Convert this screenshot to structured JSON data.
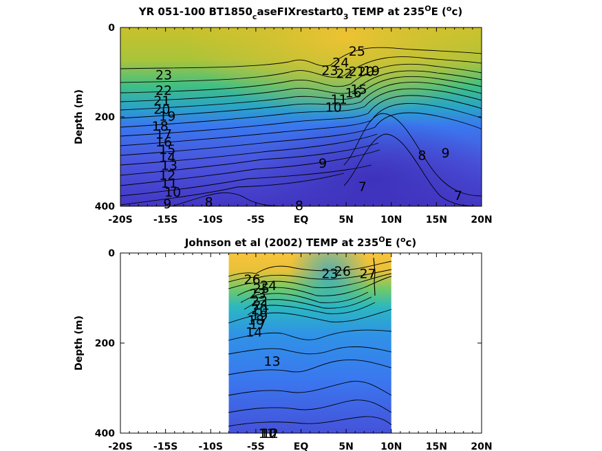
{
  "chart_data": [
    {
      "type": "contour",
      "title_main": "YR 051-100 BT1850",
      "title_sub1": "c",
      "title_mid": "aseFIXrestart0",
      "title_sub2": "3",
      "title_tail": " TEMP at 235",
      "title_deg": "O",
      "title_unit_open": "E (",
      "title_unit_deg": "o",
      "title_unit_close": "c)",
      "ylabel": "Depth (m)",
      "x_ticks": [
        "-20S",
        "-15S",
        "-10S",
        "-5S",
        "EQ",
        "5N",
        "10N",
        "15N",
        "20N"
      ],
      "x_values": [
        -20,
        -15,
        -10,
        -5,
        0,
        5,
        10,
        15,
        20
      ],
      "y_ticks": [
        "0",
        "200",
        "400"
      ],
      "y_values": [
        0,
        200,
        400
      ],
      "xlim": [
        -20,
        20
      ],
      "ylim": [
        0,
        400
      ],
      "data_extent": [
        -20,
        20
      ],
      "contour_labels": [
        {
          "text": "25",
          "x": 6.2,
          "y": 52
        },
        {
          "text": "24",
          "x": 4.4,
          "y": 78
        },
        {
          "text": "23",
          "x": 3.2,
          "y": 95
        },
        {
          "text": "22",
          "x": 4.8,
          "y": 102
        },
        {
          "text": "21",
          "x": 6.2,
          "y": 98
        },
        {
          "text": "20",
          "x": 7.2,
          "y": 98
        },
        {
          "text": "19",
          "x": 7.8,
          "y": 96
        },
        {
          "text": "23",
          "x": -15.2,
          "y": 105
        },
        {
          "text": "22",
          "x": -15.2,
          "y": 140
        },
        {
          "text": "21",
          "x": -15.4,
          "y": 163
        },
        {
          "text": "20",
          "x": -15.4,
          "y": 182
        },
        {
          "text": "19",
          "x": -14.8,
          "y": 198
        },
        {
          "text": "18",
          "x": -15.6,
          "y": 220
        },
        {
          "text": "17",
          "x": -15.2,
          "y": 238
        },
        {
          "text": "16",
          "x": -15.2,
          "y": 255
        },
        {
          "text": "15",
          "x": -14.8,
          "y": 272
        },
        {
          "text": "14",
          "x": -14.8,
          "y": 290
        },
        {
          "text": "13",
          "x": -14.6,
          "y": 308
        },
        {
          "text": "12",
          "x": -14.8,
          "y": 330
        },
        {
          "text": "11",
          "x": -14.6,
          "y": 348
        },
        {
          "text": "10",
          "x": -14.2,
          "y": 368
        },
        {
          "text": "9",
          "x": -14.8,
          "y": 394
        },
        {
          "text": "8",
          "x": -10.2,
          "y": 390
        },
        {
          "text": "8",
          "x": -0.2,
          "y": 398
        },
        {
          "text": "9",
          "x": 2.4,
          "y": 303
        },
        {
          "text": "10",
          "x": 3.6,
          "y": 178
        },
        {
          "text": "11",
          "x": 4.2,
          "y": 160
        },
        {
          "text": "16",
          "x": 5.8,
          "y": 145
        },
        {
          "text": "15",
          "x": 6.4,
          "y": 138
        },
        {
          "text": "7",
          "x": 6.8,
          "y": 355
        },
        {
          "text": "8",
          "x": 13.4,
          "y": 285
        },
        {
          "text": "9",
          "x": 16.0,
          "y": 280
        },
        {
          "text": "7",
          "x": 17.4,
          "y": 375
        }
      ]
    },
    {
      "type": "contour",
      "title_main": "Johnson et al (2002) TEMP at 235",
      "title_deg": "O",
      "title_unit_open": "E (",
      "title_unit_deg": "o",
      "title_unit_close": "c)",
      "ylabel": "Depth (m)",
      "x_ticks": [
        "-20S",
        "-15S",
        "-10S",
        "-5S",
        "EQ",
        "5N",
        "10N",
        "15N",
        "20N"
      ],
      "x_values": [
        -20,
        -15,
        -10,
        -5,
        0,
        5,
        10,
        15,
        20
      ],
      "y_ticks": [
        "0",
        "200",
        "400"
      ],
      "y_values": [
        0,
        200,
        400
      ],
      "xlim": [
        -20,
        20
      ],
      "ylim": [
        0,
        400
      ],
      "data_extent": [
        -8,
        10
      ],
      "contour_labels": [
        {
          "text": "26",
          "x": -5.4,
          "y": 58
        },
        {
          "text": "25",
          "x": -4.4,
          "y": 78
        },
        {
          "text": "24",
          "x": -3.6,
          "y": 72
        },
        {
          "text": "23",
          "x": -4.8,
          "y": 90
        },
        {
          "text": "22",
          "x": -4.6,
          "y": 105
        },
        {
          "text": "21",
          "x": -4.4,
          "y": 115
        },
        {
          "text": "20",
          "x": -4.6,
          "y": 125
        },
        {
          "text": "19",
          "x": -4.6,
          "y": 138
        },
        {
          "text": "18",
          "x": -5.0,
          "y": 148
        },
        {
          "text": "17",
          "x": -4.8,
          "y": 158
        },
        {
          "text": "14",
          "x": -5.2,
          "y": 175
        },
        {
          "text": "13",
          "x": -3.2,
          "y": 240
        },
        {
          "text": "23",
          "x": 3.2,
          "y": 45
        },
        {
          "text": "26",
          "x": 4.6,
          "y": 40
        },
        {
          "text": "27",
          "x": 7.4,
          "y": 45
        },
        {
          "text": "12",
          "x": -3.4,
          "y": 550
        },
        {
          "text": "11",
          "x": -3.8,
          "y": 657
        },
        {
          "text": "10",
          "x": -3.6,
          "y": 756
        }
      ]
    }
  ]
}
